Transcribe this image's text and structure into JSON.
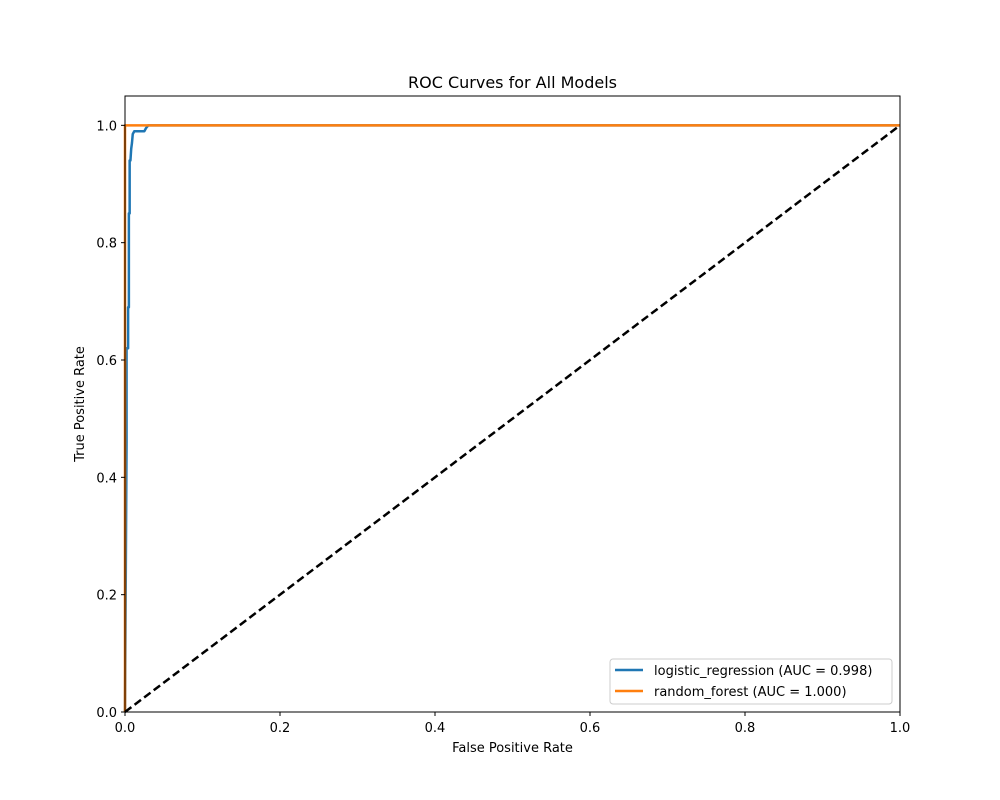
{
  "chart_data": {
    "type": "line",
    "title": "ROC Curves for All Models",
    "xlabel": "False Positive Rate",
    "ylabel": "True Positive Rate",
    "xlim": [
      0,
      1
    ],
    "ylim": [
      0,
      1.05
    ],
    "x_ticks": [
      "0.0",
      "0.2",
      "0.4",
      "0.6",
      "0.8",
      "1.0"
    ],
    "y_ticks": [
      "0.0",
      "0.2",
      "0.4",
      "0.6",
      "0.8",
      "1.0"
    ],
    "grid": false,
    "legend_position": "lower-right",
    "series": [
      {
        "name": "logistic_regression (AUC = 0.998)",
        "color": "#1f77b4",
        "x": [
          0,
          0.002,
          0.002,
          0.004,
          0.004,
          0.005,
          0.005,
          0.006,
          0.006,
          0.007,
          0.008,
          0.009,
          0.01,
          0.012,
          0.015,
          0.02,
          0.025,
          0.027,
          0.03,
          1.0
        ],
        "y": [
          0,
          0.46,
          0.62,
          0.62,
          0.69,
          0.69,
          0.85,
          0.85,
          0.94,
          0.94,
          0.96,
          0.97,
          0.985,
          0.99,
          0.99,
          0.99,
          0.99,
          0.995,
          1.0,
          1.0
        ]
      },
      {
        "name": "random_forest (AUC = 1.000)",
        "color": "#ff7f0e",
        "x": [
          0,
          0,
          1.0
        ],
        "y": [
          0,
          1.0,
          1.0
        ]
      },
      {
        "name": "",
        "color": "#000000",
        "style": "dashed",
        "x": [
          0,
          1
        ],
        "y": [
          0,
          1
        ]
      }
    ]
  }
}
